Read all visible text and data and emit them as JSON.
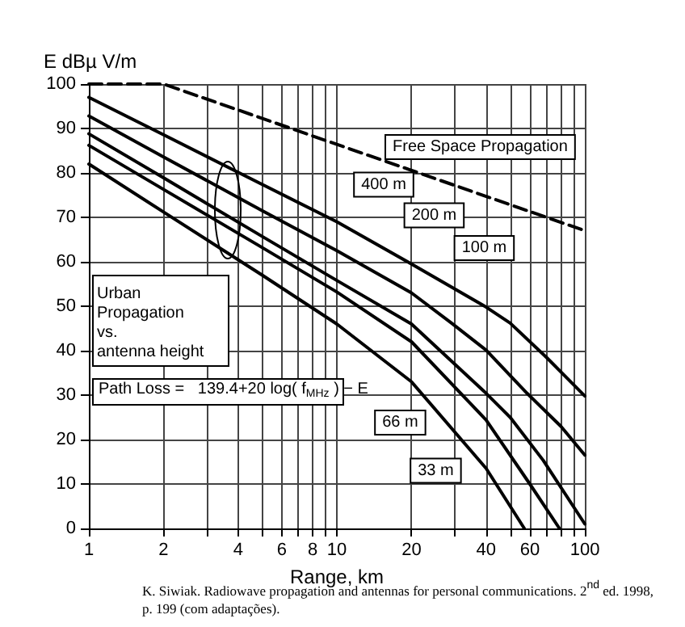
{
  "chart_data": {
    "type": "line",
    "xlabel": "Range, km",
    "ylabel": "E dBµ V/m",
    "log": "x",
    "xlim": [
      1,
      100
    ],
    "xticks": [
      1,
      2,
      {
        "value": 3,
        "label": null
      },
      4,
      {
        "value": 5,
        "label": null
      },
      6,
      {
        "value": 7,
        "label": null
      },
      8,
      {
        "value": 9,
        "label": null
      },
      10,
      20,
      {
        "value": 30,
        "label": null
      },
      40,
      {
        "value": 50,
        "label": null
      },
      60,
      {
        "value": 70,
        "label": null
      },
      {
        "value": 80,
        "label": null
      },
      {
        "value": 90,
        "label": null
      },
      100
    ],
    "ylim": [
      0,
      100
    ],
    "yticks": [
      0,
      10,
      20,
      30,
      40,
      50,
      60,
      70,
      80,
      90,
      100
    ],
    "grid": true,
    "legend": false,
    "marker": "none",
    "series": [
      {
        "name": "Free Space Propagation",
        "color": "#000000",
        "line_style": "dashed",
        "x": [
          1,
          2,
          100
        ],
        "values": [
          100,
          100,
          67
        ]
      },
      {
        "name": "400 m",
        "color": "#000000",
        "x": [
          1,
          2,
          5,
          10,
          20,
          40,
          50,
          70,
          100
        ],
        "values": [
          97,
          88.6,
          77.4,
          69,
          59.5,
          49.8,
          46.2,
          38.5,
          29.8
        ]
      },
      {
        "name": "200 m",
        "color": "#000000",
        "x": [
          1,
          2,
          5,
          10,
          20,
          29,
          40,
          58.5,
          80,
          100
        ],
        "values": [
          92.8,
          83.6,
          71.5,
          62.5,
          53,
          46.2,
          40.1,
          30.4,
          23,
          16.5
        ]
      },
      {
        "name": "100 m",
        "color": "#000000",
        "x": [
          1,
          2,
          5,
          10,
          20,
          40,
          50,
          68,
          100
        ],
        "values": [
          88.8,
          78.9,
          65.7,
          55.8,
          46,
          30.4,
          25,
          15.3,
          1
        ]
      },
      {
        "name": "66 m",
        "color": "#000000",
        "x": [
          1,
          2,
          5,
          10,
          20,
          40,
          60,
          79
        ],
        "values": [
          86.2,
          76.3,
          63.2,
          53.2,
          42,
          24.4,
          10,
          0
        ]
      },
      {
        "name": "33 m",
        "color": "#000000",
        "x": [
          1,
          2,
          5,
          10,
          20,
          40,
          50,
          57
        ],
        "values": [
          82,
          71.2,
          57,
          46,
          33,
          13.5,
          5,
          0
        ]
      }
    ],
    "annotations": [
      "Urban Propagation vs. antenna height",
      "Path Loss =   139.4+20 log( f$_{MHz}$ ) − E",
      "K. Siwiak. Radiowave propagation and antennas for personal communications. 2$^{nd}$ ed. 1998, p. 199 (com adaptações)."
    ]
  }
}
